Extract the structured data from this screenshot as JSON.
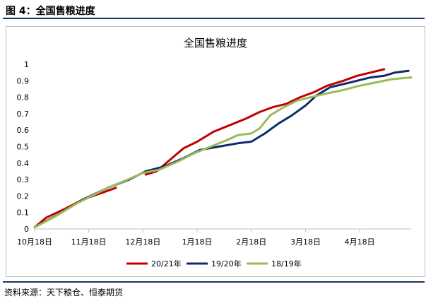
{
  "figure": {
    "label": "图 4：全国售粮进度",
    "source": "资料来源：天下粮仓、恒泰期货"
  },
  "chart_data": {
    "type": "line",
    "title": "全国售粮进度",
    "xlabel": "",
    "ylabel": "",
    "ylim": [
      0,
      1
    ],
    "yticks": [
      "0",
      "0.1",
      "0.2",
      "0.3",
      "0.4",
      "0.5",
      "0.6",
      "0.7",
      "0.8",
      "0.9",
      "1"
    ],
    "xlim": [
      0,
      6.95
    ],
    "xticks": [
      {
        "label": "10月18日",
        "x": 0
      },
      {
        "label": "11月18日",
        "x": 1
      },
      {
        "label": "12月18日",
        "x": 2
      },
      {
        "label": "1月18日",
        "x": 3
      },
      {
        "label": "2月18日",
        "x": 4
      },
      {
        "label": "3月18日",
        "x": 5
      },
      {
        "label": "4月18日",
        "x": 6
      }
    ],
    "grid": false,
    "legend_position": "bottom",
    "series": [
      {
        "name": "20/21年",
        "color": "#c00000",
        "x": [
          0,
          0.22,
          0.55,
          0.9,
          1.25,
          1.5,
          1.82,
          2.05,
          2.25,
          2.5,
          2.75,
          3.0,
          3.3,
          3.6,
          3.9,
          4.15,
          4.4,
          4.65,
          4.9,
          5.15,
          5.4,
          5.7,
          5.95,
          6.2,
          6.45
        ],
        "values": [
          0.01,
          0.07,
          0.12,
          0.18,
          0.22,
          0.25,
          null,
          0.33,
          0.35,
          0.42,
          0.49,
          0.53,
          0.59,
          0.63,
          0.67,
          0.71,
          0.74,
          0.76,
          0.8,
          0.83,
          0.87,
          0.9,
          0.93,
          0.95,
          0.97
        ]
      },
      {
        "name": "19/20年",
        "color": "#0d2c6b",
        "x": [
          0,
          0.45,
          0.9,
          1.35,
          1.75,
          2.05,
          2.4,
          2.75,
          3.05,
          3.4,
          3.75,
          4.0,
          4.25,
          4.5,
          4.75,
          5.0,
          5.2,
          5.45,
          5.7,
          5.95,
          6.2,
          6.45,
          6.65,
          6.9
        ],
        "values": [
          0.01,
          0.09,
          0.18,
          0.25,
          0.3,
          0.35,
          0.38,
          0.43,
          0.48,
          0.5,
          0.52,
          0.53,
          0.58,
          0.64,
          0.69,
          0.75,
          0.81,
          0.86,
          0.88,
          0.9,
          0.92,
          0.93,
          0.95,
          0.96
        ]
      },
      {
        "name": "18/19年",
        "color": "#9bbb59",
        "x": [
          0,
          0.35,
          0.75,
          1.05,
          1.35,
          1.65,
          2.0,
          2.3,
          2.65,
          2.95,
          3.25,
          3.55,
          3.75,
          4.0,
          4.15,
          4.35,
          4.6,
          4.85,
          5.1,
          5.35,
          5.65,
          6.0,
          6.3,
          6.6,
          6.95
        ],
        "values": [
          0.01,
          0.07,
          0.15,
          0.2,
          0.25,
          0.29,
          0.34,
          0.36,
          0.41,
          0.46,
          0.5,
          0.54,
          0.57,
          0.58,
          0.61,
          0.69,
          0.74,
          0.78,
          0.8,
          0.82,
          0.84,
          0.87,
          0.89,
          0.91,
          0.92
        ]
      }
    ]
  }
}
